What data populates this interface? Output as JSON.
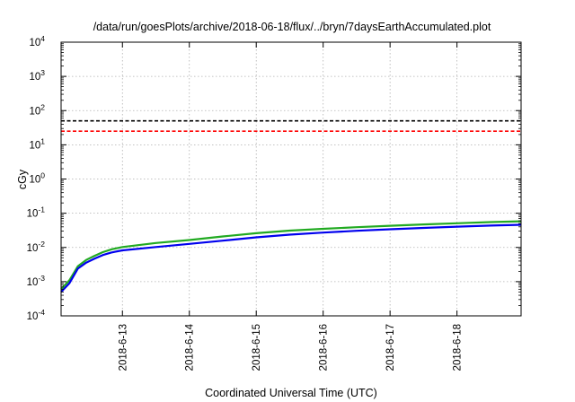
{
  "chart_data": {
    "type": "line",
    "title": "/data/run/goesPlots/archive/2018-06-18/flux/../bryn/7daysEarthAccumulated.plot",
    "xlabel": "Coordinated Universal Time (UTC)",
    "ylabel": "cGy",
    "yscale": "log",
    "ylim": [
      0.0001,
      10000
    ],
    "xlim": [
      "2018-06-12 02:00",
      "2018-06-18 23:00"
    ],
    "grid": true,
    "y_ticks": [
      {
        "base": "10",
        "exp": "-4"
      },
      {
        "base": "10",
        "exp": "-3"
      },
      {
        "base": "10",
        "exp": "-2"
      },
      {
        "base": "10",
        "exp": "-1"
      },
      {
        "base": "10",
        "exp": "0"
      },
      {
        "base": "10",
        "exp": "1"
      },
      {
        "base": "10",
        "exp": "2"
      },
      {
        "base": "10",
        "exp": "3"
      },
      {
        "base": "10",
        "exp": "4"
      }
    ],
    "x_ticks": [
      "2018-6-13",
      "2018-6-14",
      "2018-6-15",
      "2018-6-16",
      "2018-6-17",
      "2018-6-18"
    ],
    "thresholds": [
      {
        "value": 50,
        "color": "#000000",
        "style": "dashed"
      },
      {
        "value": 25,
        "color": "#ff0000",
        "style": "dashed"
      }
    ],
    "series": [
      {
        "color": "#22aa22",
        "x": [
          "2018-06-12 02:00",
          "2018-06-12 05:00",
          "2018-06-12 08:00",
          "2018-06-12 11:00",
          "2018-06-12 14:00",
          "2018-06-12 17:00",
          "2018-06-12 20:00",
          "2018-06-13 00:00",
          "2018-06-13 12:00",
          "2018-06-14 00:00",
          "2018-06-14 12:00",
          "2018-06-15 00:00",
          "2018-06-15 12:00",
          "2018-06-16 00:00",
          "2018-06-16 12:00",
          "2018-06-17 00:00",
          "2018-06-17 12:00",
          "2018-06-18 00:00",
          "2018-06-18 12:00",
          "2018-06-18 23:00"
        ],
        "values": [
          0.0006,
          0.0011,
          0.0028,
          0.0043,
          0.0057,
          0.0073,
          0.0088,
          0.0103,
          0.0135,
          0.0165,
          0.021,
          0.026,
          0.031,
          0.035,
          0.039,
          0.043,
          0.047,
          0.051,
          0.055,
          0.058
        ]
      },
      {
        "color": "#0000ee",
        "x": [
          "2018-06-12 02:00",
          "2018-06-12 05:00",
          "2018-06-12 08:00",
          "2018-06-12 11:00",
          "2018-06-12 14:00",
          "2018-06-12 17:00",
          "2018-06-12 20:00",
          "2018-06-13 00:00",
          "2018-06-13 12:00",
          "2018-06-14 00:00",
          "2018-06-14 12:00",
          "2018-06-15 00:00",
          "2018-06-15 12:00",
          "2018-06-16 00:00",
          "2018-06-16 12:00",
          "2018-06-17 00:00",
          "2018-06-17 12:00",
          "2018-06-18 00:00",
          "2018-06-18 12:00",
          "2018-06-18 23:00"
        ],
        "values": [
          0.0005,
          0.0009,
          0.0024,
          0.0036,
          0.0047,
          0.006,
          0.0071,
          0.0082,
          0.0103,
          0.0127,
          0.0158,
          0.0197,
          0.0237,
          0.0271,
          0.0306,
          0.034,
          0.0373,
          0.0405,
          0.0435,
          0.046
        ]
      }
    ]
  }
}
